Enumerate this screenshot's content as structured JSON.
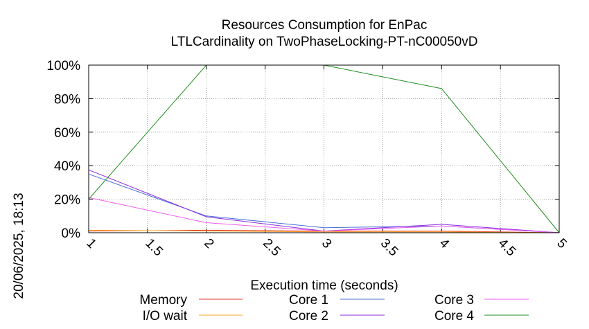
{
  "chart_data": {
    "type": "line",
    "title": "Resources Consumption for EnPac",
    "subtitle": "LTLCardinality on TwoPhaseLocking-PT-nC00050vD",
    "xlabel": "Execution time (seconds)",
    "ylabel": "",
    "side_label": "20/06/2025, 18:13",
    "xlim": [
      1,
      5
    ],
    "ylim": [
      0,
      100
    ],
    "x_ticks": [
      "1",
      "1.5",
      "2",
      "2.5",
      "3",
      "3.5",
      "4",
      "4.5",
      "5"
    ],
    "y_ticks": [
      "0%",
      "20%",
      "40%",
      "60%",
      "80%",
      "100%"
    ],
    "grid": true,
    "legend_position": "bottom",
    "x": [
      1,
      2,
      3,
      4,
      5
    ],
    "series": [
      {
        "name": "Memory",
        "color": "#e8352b",
        "values": [
          1,
          1.5,
          1,
          1,
          0
        ]
      },
      {
        "name": "I/O wait",
        "color": "#f5a623",
        "values": [
          1.5,
          1,
          0.5,
          0.5,
          0
        ]
      },
      {
        "name": "Core 1",
        "color": "#4a6fd8",
        "values": [
          35,
          10,
          3,
          4,
          0
        ]
      },
      {
        "name": "Core 2",
        "color": "#8a2be2",
        "values": [
          37.5,
          9.5,
          1,
          5,
          0
        ]
      },
      {
        "name": "Core 3",
        "color": "#f05cf0",
        "values": [
          21,
          6,
          1,
          4,
          0
        ]
      },
      {
        "name": "Core 4",
        "color": "#1e8c1e",
        "values": [
          20,
          100,
          100,
          86,
          0
        ]
      }
    ]
  }
}
